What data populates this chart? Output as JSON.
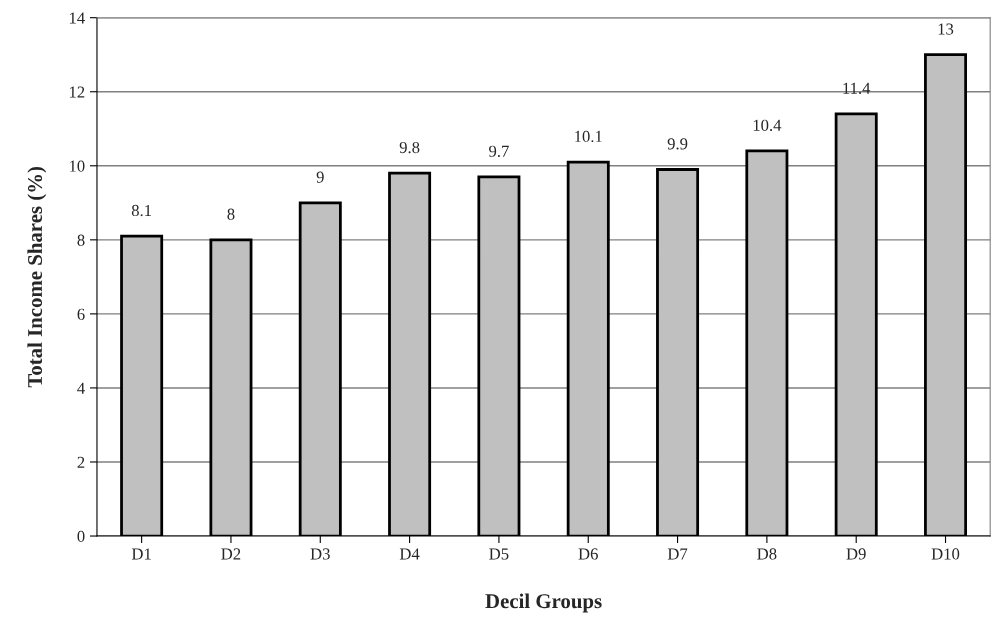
{
  "chart_data": {
    "type": "bar",
    "xlabel": "Decil Groups",
    "ylabel": "Total Income Shares (%)",
    "categories": [
      "D1",
      "D2",
      "D3",
      "D4",
      "D5",
      "D6",
      "D7",
      "D8",
      "D9",
      "D10"
    ],
    "values": [
      8.1,
      8,
      9,
      9.8,
      9.7,
      10.1,
      9.9,
      10.4,
      11.4,
      13
    ],
    "color": "#c0c0c0",
    "ylim": [
      0,
      14
    ],
    "yticks": [
      0,
      2,
      4,
      6,
      8,
      10,
      12,
      14
    ],
    "grid": "y",
    "data_labels": true
  }
}
